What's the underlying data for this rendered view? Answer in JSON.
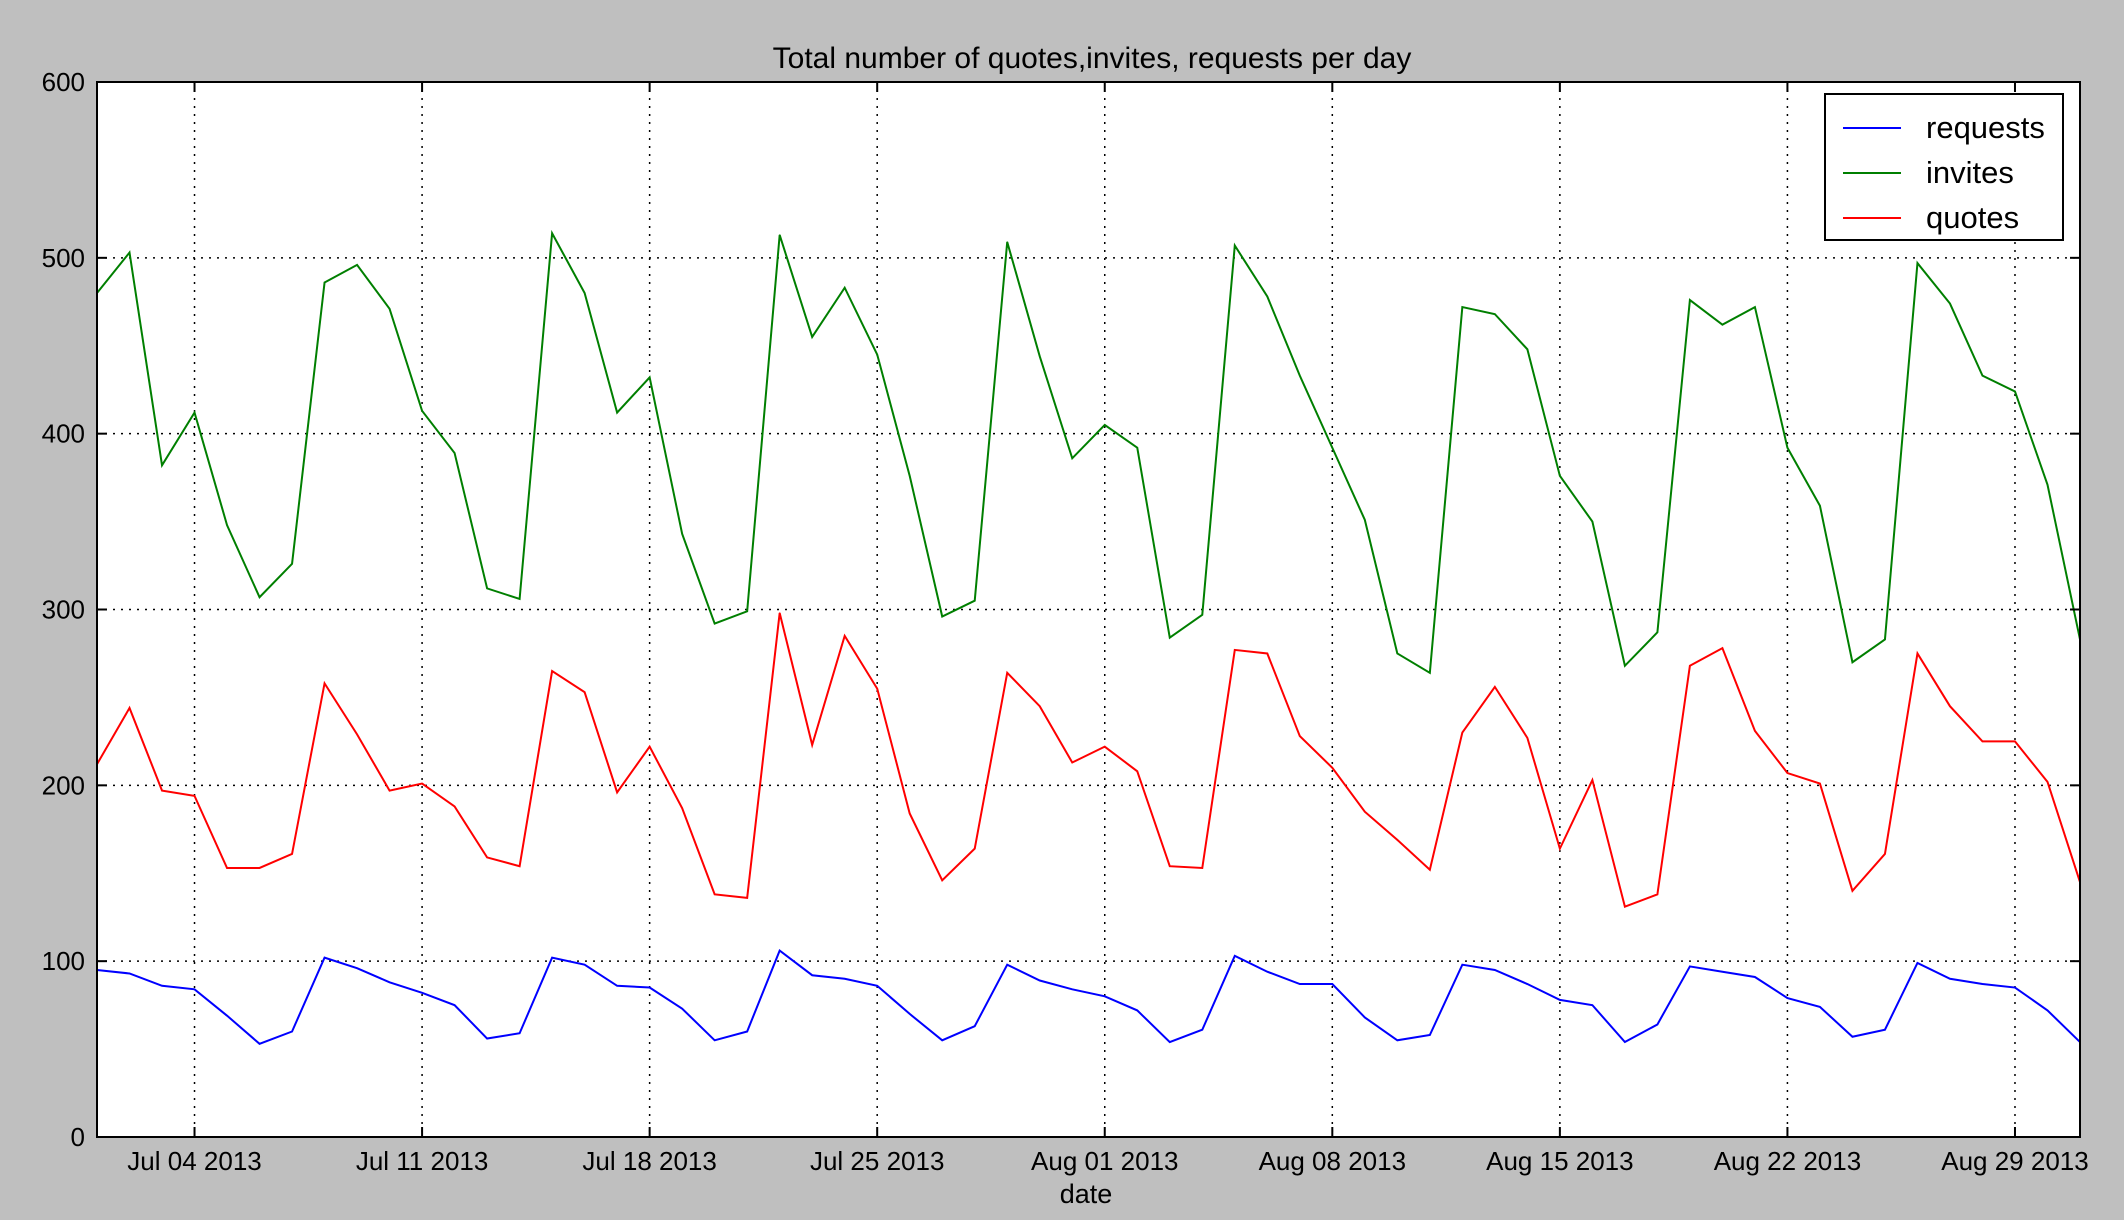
{
  "chart_data": {
    "type": "line",
    "title": "Total number of quotes,invites, requests per day",
    "xlabel": "date",
    "ylabel": "",
    "ylim": [
      0,
      600
    ],
    "x_start": "2013-07-01",
    "x_end": "2013-08-31",
    "grid": true,
    "legend_position": "top-right",
    "y_ticks": [
      0,
      100,
      200,
      300,
      400,
      500,
      600
    ],
    "x_ticks": [
      {
        "date": "2013-07-04",
        "label": "Jul 04 2013"
      },
      {
        "date": "2013-07-11",
        "label": "Jul 11 2013"
      },
      {
        "date": "2013-07-18",
        "label": "Jul 18 2013"
      },
      {
        "date": "2013-07-25",
        "label": "Jul 25 2013"
      },
      {
        "date": "2013-08-01",
        "label": "Aug 01 2013"
      },
      {
        "date": "2013-08-08",
        "label": "Aug 08 2013"
      },
      {
        "date": "2013-08-15",
        "label": "Aug 15 2013"
      },
      {
        "date": "2013-08-22",
        "label": "Aug 22 2013"
      },
      {
        "date": "2013-08-29",
        "label": "Aug 29 2013"
      }
    ],
    "x": [
      "2013-07-01",
      "2013-07-02",
      "2013-07-03",
      "2013-07-04",
      "2013-07-05",
      "2013-07-06",
      "2013-07-07",
      "2013-07-08",
      "2013-07-09",
      "2013-07-10",
      "2013-07-11",
      "2013-07-12",
      "2013-07-13",
      "2013-07-14",
      "2013-07-15",
      "2013-07-16",
      "2013-07-17",
      "2013-07-18",
      "2013-07-19",
      "2013-07-20",
      "2013-07-21",
      "2013-07-22",
      "2013-07-23",
      "2013-07-24",
      "2013-07-25",
      "2013-07-26",
      "2013-07-27",
      "2013-07-28",
      "2013-07-29",
      "2013-07-30",
      "2013-07-31",
      "2013-08-01",
      "2013-08-02",
      "2013-08-03",
      "2013-08-04",
      "2013-08-05",
      "2013-08-06",
      "2013-08-07",
      "2013-08-08",
      "2013-08-09",
      "2013-08-10",
      "2013-08-11",
      "2013-08-12",
      "2013-08-13",
      "2013-08-14",
      "2013-08-15",
      "2013-08-16",
      "2013-08-17",
      "2013-08-18",
      "2013-08-19",
      "2013-08-20",
      "2013-08-21",
      "2013-08-22",
      "2013-08-23",
      "2013-08-24",
      "2013-08-25",
      "2013-08-26",
      "2013-08-27",
      "2013-08-28",
      "2013-08-29",
      "2013-08-30",
      "2013-08-31"
    ],
    "series": [
      {
        "name": "requests",
        "color": "#0000ff",
        "values": [
          95,
          93,
          86,
          84,
          69,
          53,
          60,
          102,
          96,
          88,
          82,
          75,
          56,
          59,
          102,
          98,
          86,
          85,
          73,
          55,
          60,
          106,
          92,
          90,
          86,
          70,
          55,
          63,
          98,
          89,
          84,
          80,
          72,
          54,
          61,
          103,
          94,
          87,
          87,
          68,
          55,
          58,
          98,
          95,
          87,
          78,
          75,
          54,
          64,
          97,
          94,
          91,
          79,
          74,
          57,
          61,
          99,
          90,
          87,
          85,
          72,
          54
        ]
      },
      {
        "name": "invites",
        "color": "#007f00",
        "values": [
          480,
          503,
          382,
          412,
          348,
          307,
          326,
          486,
          496,
          471,
          413,
          389,
          312,
          306,
          514,
          480,
          412,
          432,
          343,
          292,
          299,
          513,
          455,
          483,
          445,
          376,
          296,
          305,
          509,
          444,
          386,
          405,
          392,
          284,
          297,
          507,
          478,
          433,
          392,
          351,
          275,
          264,
          472,
          468,
          448,
          376,
          350,
          268,
          287,
          476,
          462,
          472,
          392,
          359,
          270,
          283,
          497,
          474,
          433,
          424,
          371,
          283
        ]
      },
      {
        "name": "quotes",
        "color": "#ff0000",
        "values": [
          212,
          244,
          197,
          194,
          153,
          153,
          161,
          258,
          229,
          197,
          201,
          188,
          159,
          154,
          265,
          253,
          196,
          222,
          187,
          138,
          136,
          298,
          223,
          285,
          255,
          184,
          146,
          164,
          264,
          245,
          213,
          222,
          208,
          154,
          153,
          277,
          275,
          228,
          210,
          185,
          169,
          152,
          230,
          256,
          227,
          164,
          203,
          131,
          138,
          268,
          278,
          231,
          207,
          201,
          140,
          161,
          275,
          245,
          225,
          225,
          202,
          145
        ]
      }
    ]
  }
}
